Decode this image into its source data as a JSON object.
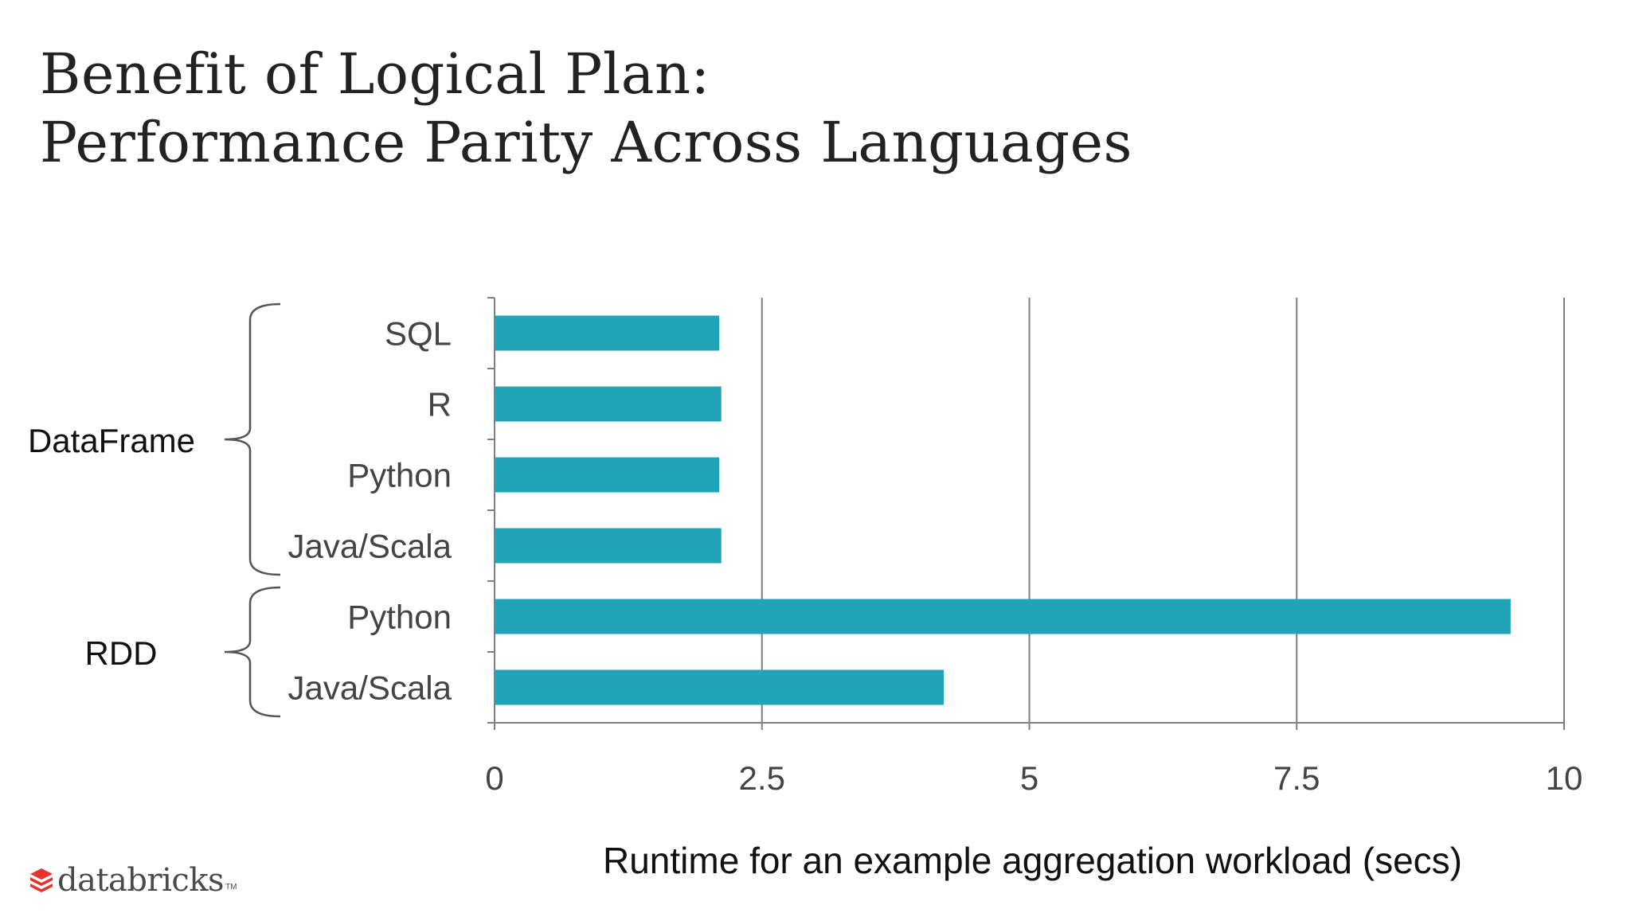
{
  "slide": {
    "title_line1": "Benefit of Logical Plan:",
    "title_line2": "Performance Parity Across Languages"
  },
  "brand": {
    "logo_text": "databricks",
    "logo_tm": "TM",
    "logo_color": "#e8322b"
  },
  "chart_data": {
    "type": "bar",
    "orientation": "horizontal",
    "categories": [
      "SQL",
      "R",
      "Python",
      "Java/Scala",
      "Python",
      "Java/Scala"
    ],
    "values": [
      2.1,
      2.12,
      2.1,
      2.12,
      9.5,
      4.2
    ],
    "groups": [
      {
        "label": "DataFrame",
        "categories": [
          0,
          1,
          2,
          3
        ]
      },
      {
        "label": "RDD",
        "categories": [
          4,
          5
        ]
      }
    ],
    "xlabel": "Runtime for an example aggregation workload (secs)",
    "ylabel": "",
    "xlim": [
      0,
      10
    ],
    "xticks": [
      0,
      2.5,
      5,
      7.5,
      10
    ],
    "xtick_labels": [
      "0",
      "2.5",
      "5",
      "7.5",
      "10"
    ],
    "grid": "vertical",
    "bar_color": "#20a4b8",
    "legend": "none"
  }
}
